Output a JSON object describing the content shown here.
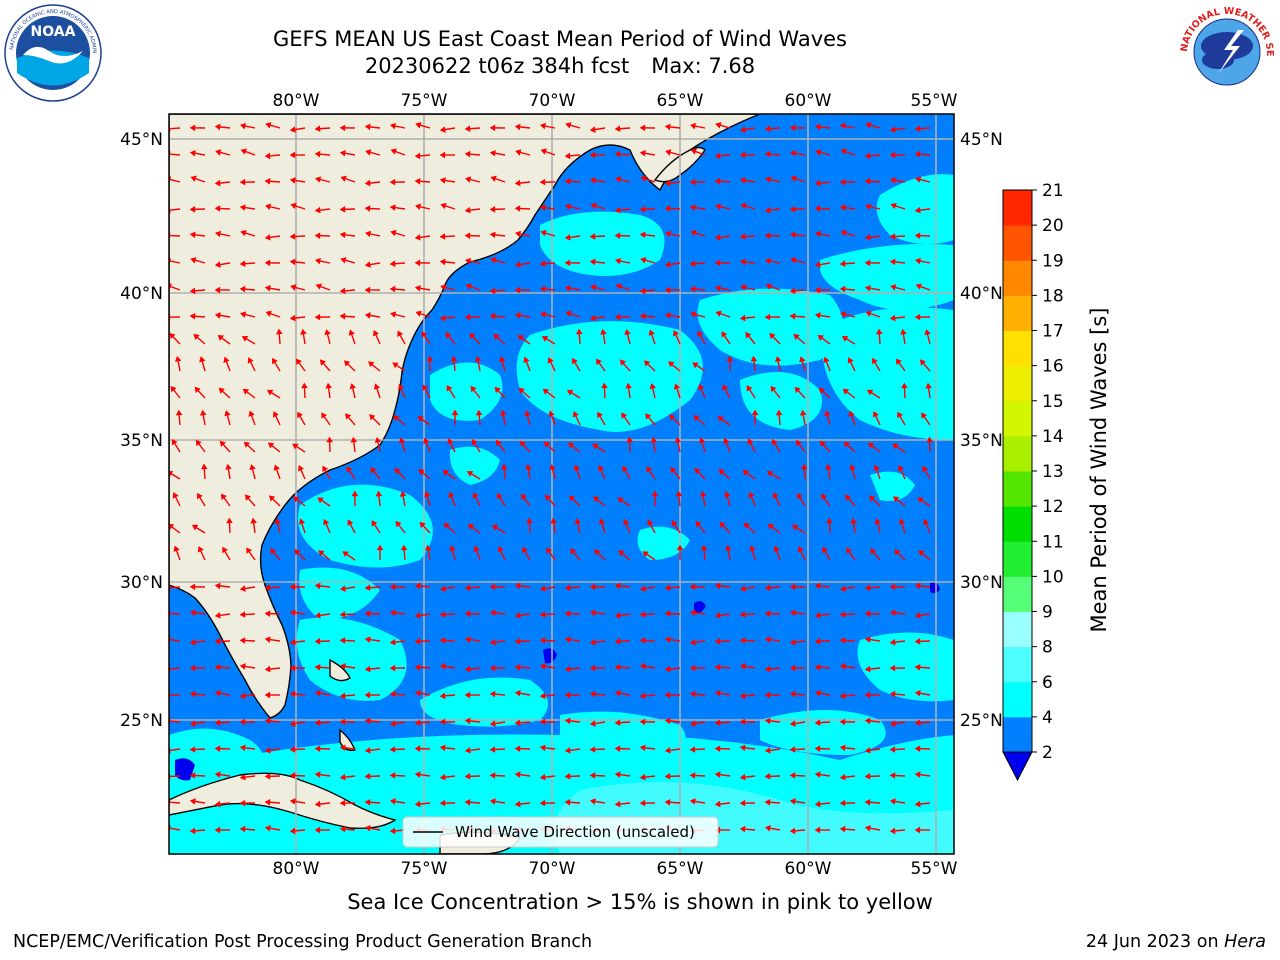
{
  "header": {
    "title_line1": "GEFS MEAN US East Coast Mean Period of Wind Waves",
    "title_date": "20230622 t06z 384h fcst",
    "title_max": "Max: 7.68"
  },
  "logos": {
    "left": "NOAA",
    "right": "NATIONAL WEATHER SERVICE"
  },
  "map": {
    "lon_labels": [
      "80°W",
      "75°W",
      "70°W",
      "65°W",
      "60°W",
      "55°W"
    ],
    "lat_labels": [
      "45°N",
      "40°N",
      "35°N",
      "30°N",
      "25°N"
    ],
    "legend_label": "Wind Wave Direction (unscaled)",
    "colors": {
      "ocean": "#0080ff",
      "cyan": "#00ffff",
      "light_cyan": "#4dfaff",
      "land": "#efedde",
      "arrow": "#ff0000",
      "grid": "#b0b0b0"
    }
  },
  "colorbar": {
    "label": "Mean Period of Wind Waves [s]",
    "ticks": [
      "2",
      "4",
      "6",
      "8",
      "9",
      "10",
      "11",
      "12",
      "13",
      "14",
      "15",
      "16",
      "17",
      "18",
      "19",
      "20",
      "21"
    ],
    "colors": [
      "#0080ff",
      "#00ffff",
      "#4dffff",
      "#99ffff",
      "#55ff77",
      "#22ee33",
      "#00dd00",
      "#55e600",
      "#aaee00",
      "#d2f500",
      "#eeee00",
      "#ffe000",
      "#ffb000",
      "#ff8800",
      "#ff5500",
      "#ff2600",
      "#ff0000"
    ],
    "under_color": "#0000ee"
  },
  "caption": "Sea Ice Concentration > 15% is shown in pink to yellow",
  "footer": {
    "left": "NCEP/EMC/Verification Post Processing Product Generation Branch",
    "right_date": "24 Jun 2023 on",
    "right_host": "Hera"
  }
}
